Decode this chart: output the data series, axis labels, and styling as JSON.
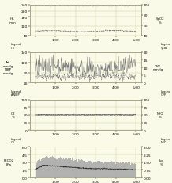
{
  "bg_color": "#fafae8",
  "panel_bg": "#fafae8",
  "grid_color": "#c8c896",
  "n_points": 300,
  "time_labels": [
    "1:00",
    "2:00",
    "3:00",
    "4:00",
    "5:00"
  ],
  "panel1": {
    "left_label": "HR\n/min",
    "right_label": "SpO2\n%",
    "legend_left": "Legend\nHR",
    "legend_right": "Legend\nSpO2",
    "left_ylim": [
      40,
      240
    ],
    "right_ylim": [
      40,
      100
    ],
    "left_yticks": [
      40,
      100,
      160,
      200,
      240
    ],
    "right_yticks": [
      40,
      60,
      80,
      100
    ],
    "hr_color": "#555555",
    "spo2_color": "#555555"
  },
  "panel2": {
    "left_label": "Art\nmmHg\nNIBP\nmmHg",
    "right_label": "CVP\nmmHg",
    "legend_left": "Legend\nA-NIBP",
    "legend_right": "Legend\nCVP",
    "left_ylim": [
      20,
      140
    ],
    "right_ylim": [
      0,
      20
    ],
    "left_yticks": [
      20,
      60,
      100,
      140
    ],
    "right_yticks": [
      0,
      5,
      10,
      15,
      20
    ],
    "art_color": "#777777",
    "cvp_color": "#777777"
  },
  "panel3": {
    "left_label": "O2\n%",
    "right_label": "N2O\n%",
    "legend_left": "Legend\nO2",
    "legend_right": "Legend\nN2O",
    "left_ylim": [
      0,
      100
    ],
    "right_ylim": [
      0,
      100
    ],
    "left_yticks": [
      0,
      25,
      50,
      75,
      100
    ],
    "right_yticks": [
      0,
      25,
      50,
      75,
      100
    ],
    "o2_color": "#555555",
    "n2o_color": "#555555"
  },
  "panel4": {
    "left_label": "FECO2\nkPa",
    "right_label": "Iso\n%",
    "legend_left": "Legend\nCO2",
    "legend_right": "Legend\nIso",
    "left_ylim": [
      0,
      6
    ],
    "right_ylim": [
      0,
      3
    ],
    "left_yticks": [
      0,
      1.5,
      3.0,
      4.5,
      6.0
    ],
    "right_yticks": [
      0,
      0.75,
      1.5,
      2.25,
      3.0
    ],
    "bar_color": "#aaaaaa",
    "line_color": "#333333"
  }
}
